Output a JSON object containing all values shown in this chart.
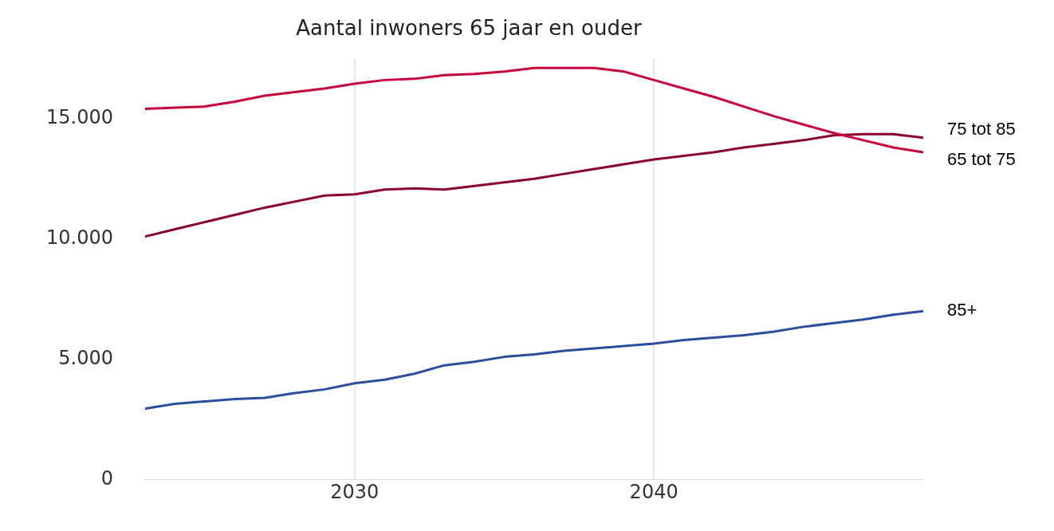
{
  "chart_data": {
    "type": "line",
    "title": "Aantal inwoners 65 jaar en ouder",
    "x": [
      2023,
      2024,
      2025,
      2026,
      2027,
      2028,
      2029,
      2030,
      2031,
      2032,
      2033,
      2034,
      2035,
      2036,
      2037,
      2038,
      2039,
      2040,
      2041,
      2042,
      2043,
      2044,
      2045,
      2046,
      2047,
      2048,
      2049
    ],
    "series": [
      {
        "name": "65 tot 75",
        "color": "#c8003c",
        "values": [
          15400,
          15450,
          15500,
          15700,
          15950,
          16100,
          16250,
          16450,
          16600,
          16650,
          16800,
          16850,
          16950,
          17100,
          17100,
          17100,
          16950,
          16600,
          16250,
          15900,
          15500,
          15100,
          14750,
          14400,
          14100,
          13800,
          13600
        ]
      },
      {
        "name": "75 tot 85",
        "color": "#8b0030",
        "values": [
          10100,
          10400,
          10700,
          11000,
          11300,
          11550,
          11800,
          11850,
          12050,
          12100,
          12050,
          12200,
          12350,
          12500,
          12700,
          12900,
          13100,
          13300,
          13450,
          13600,
          13800,
          13950,
          14100,
          14300,
          14350,
          14350,
          14200
        ]
      },
      {
        "name": "85+",
        "color": "#2a4d9c",
        "values": [
          2950,
          3150,
          3250,
          3350,
          3400,
          3600,
          3750,
          4000,
          4150,
          4400,
          4750,
          4900,
          5100,
          5200,
          5350,
          5450,
          5550,
          5650,
          5800,
          5900,
          6000,
          6150,
          6350,
          6500,
          6650,
          6850,
          7000
        ]
      }
    ],
    "xlim": [
      2023,
      2049
    ],
    "xticks": [
      2030,
      2040
    ],
    "ylim": [
      0,
      17500
    ],
    "yticks": [
      {
        "value": 0,
        "label": "0"
      },
      {
        "value": 5000,
        "label": "5.000"
      },
      {
        "value": 10000,
        "label": "10.000"
      },
      {
        "value": 15000,
        "label": "15.000"
      }
    ],
    "grid": "x",
    "legend": false,
    "marker": "none",
    "line_style": "solid"
  }
}
